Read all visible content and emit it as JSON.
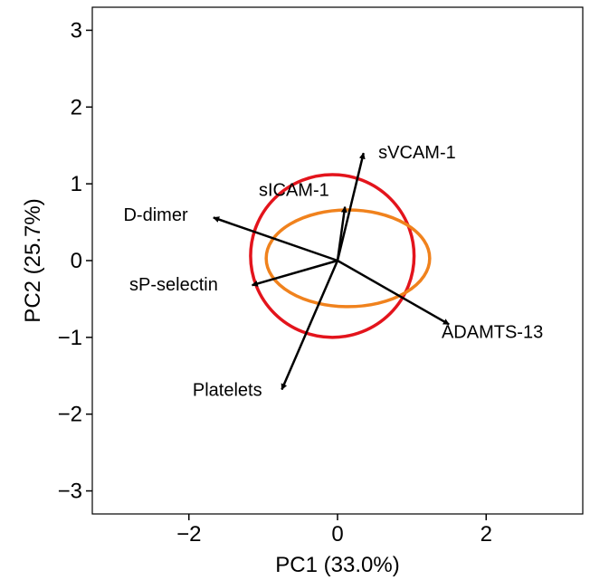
{
  "chart_data": {
    "type": "biplot",
    "xlabel": "PC1 (33.0%)",
    "ylabel": "PC2 (25.7%)",
    "xlim": [
      -3.3,
      3.3
    ],
    "ylim": [
      -3.3,
      3.3
    ],
    "x_ticks": [
      -2,
      0,
      2
    ],
    "y_ticks": [
      -3,
      -2,
      -1,
      0,
      1,
      2,
      3
    ],
    "x_tick_labels": [
      "−2",
      "0",
      "2"
    ],
    "y_tick_labels": [
      "−3",
      "−2",
      "−1",
      "0",
      "1",
      "2",
      "3"
    ],
    "grid": false,
    "loadings": [
      {
        "name": "sVCAM-1",
        "x": 0.35,
        "y": 1.4,
        "label_x": 0.55,
        "label_y": 1.33
      },
      {
        "name": "sICAM-1",
        "x": 0.1,
        "y": 0.7,
        "label_x": -1.06,
        "label_y": 0.84
      },
      {
        "name": "D-dimer",
        "x": -1.67,
        "y": 0.56,
        "label_x": -2.88,
        "label_y": 0.52
      },
      {
        "name": "sP-selectin",
        "x": -1.15,
        "y": -0.32,
        "label_x": -2.8,
        "label_y": -0.39
      },
      {
        "name": "ADAMTS-13",
        "x": 1.5,
        "y": -0.83,
        "label_x": 1.4,
        "label_y": -1.01
      },
      {
        "name": "Platelets",
        "x": -0.75,
        "y": -1.68,
        "label_x": -1.95,
        "label_y": -1.76
      }
    ],
    "ellipses": [
      {
        "color": "#e3141c",
        "cx": -0.07,
        "cy": 0.06,
        "rx": 1.1,
        "ry": 1.06,
        "angle": 0
      },
      {
        "color": "#f0821d",
        "cx": 0.14,
        "cy": 0.03,
        "rx": 1.1,
        "ry": 0.63,
        "angle": 0
      }
    ],
    "arrow_color": "#000000"
  }
}
